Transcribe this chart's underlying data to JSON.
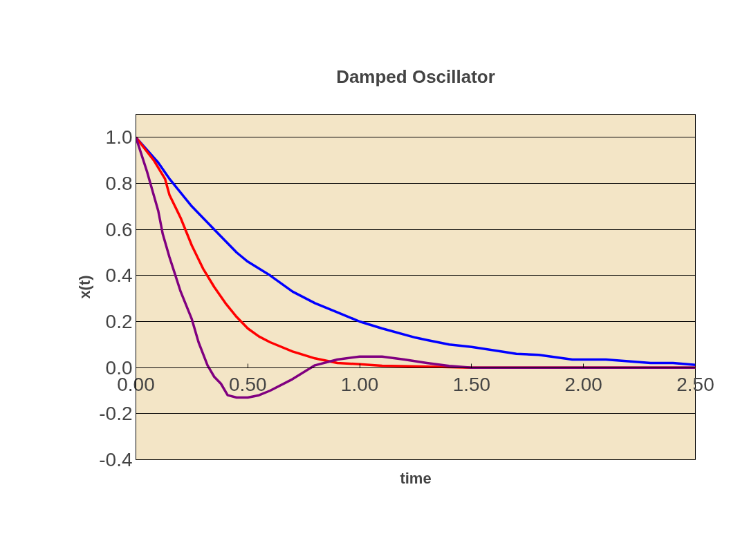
{
  "chart_data": {
    "type": "line",
    "title": "Damped Oscillator",
    "xlabel": "time",
    "ylabel": "x(t)",
    "xlim": [
      0,
      2.5
    ],
    "xticks": [
      {
        "value": 0,
        "label": "0.00"
      },
      {
        "value": 0.5,
        "label": "0.50"
      },
      {
        "value": 1,
        "label": "1.00"
      },
      {
        "value": 1.5,
        "label": "1.50"
      },
      {
        "value": 2,
        "label": "2.00"
      },
      {
        "value": 2.5,
        "label": "2.50"
      }
    ],
    "ylim": [
      -0.4,
      1.1
    ],
    "yticks": [
      {
        "value": -0.4,
        "label": "-0.4"
      },
      {
        "value": -0.2,
        "label": "-0.2"
      },
      {
        "value": 0,
        "label": "0.0"
      },
      {
        "value": 0.2,
        "label": "0.2"
      },
      {
        "value": 0.4,
        "label": "0.4"
      },
      {
        "value": 0.6,
        "label": "0.6"
      },
      {
        "value": 0.8,
        "label": "0.8"
      },
      {
        "value": 1,
        "label": "1.0"
      }
    ],
    "grid": "y",
    "marker": "none",
    "line_style": "solid",
    "series": [
      {
        "color": "#0000ff",
        "x": [
          0,
          0.1,
          0.15,
          0.25,
          0.35,
          0.45,
          0.5,
          0.6,
          0.7,
          0.8,
          0.9,
          1.0,
          1.1,
          1.25,
          1.3,
          1.4,
          1.5,
          1.7,
          1.8,
          1.95,
          2.1,
          2.3,
          2.4,
          2.5
        ],
        "values": [
          1,
          0.89,
          0.82,
          0.7,
          0.6,
          0.5,
          0.46,
          0.4,
          0.33,
          0.28,
          0.24,
          0.2,
          0.17,
          0.13,
          0.12,
          0.1,
          0.09,
          0.06,
          0.055,
          0.035,
          0.035,
          0.02,
          0.02,
          0.012
        ]
      },
      {
        "color": "#ff0000",
        "x": [
          0,
          0.08,
          0.13,
          0.15,
          0.2,
          0.25,
          0.3,
          0.35,
          0.4,
          0.45,
          0.5,
          0.55,
          0.6,
          0.7,
          0.8,
          0.9,
          1.0,
          1.1,
          1.3,
          1.5,
          2.5
        ],
        "values": [
          1,
          0.9,
          0.82,
          0.75,
          0.65,
          0.53,
          0.43,
          0.35,
          0.28,
          0.22,
          0.17,
          0.135,
          0.11,
          0.07,
          0.04,
          0.02,
          0.015,
          0.008,
          0.004,
          0,
          0
        ]
      },
      {
        "color": "#800080",
        "x": [
          0,
          0.05,
          0.1,
          0.12,
          0.15,
          0.2,
          0.25,
          0.28,
          0.32,
          0.35,
          0.38,
          0.41,
          0.45,
          0.5,
          0.55,
          0.6,
          0.7,
          0.8,
          0.9,
          1.0,
          1.1,
          1.2,
          1.3,
          1.4,
          1.5,
          2.5
        ],
        "values": [
          1,
          0.85,
          0.68,
          0.58,
          0.48,
          0.33,
          0.21,
          0.11,
          0.01,
          -0.04,
          -0.07,
          -0.12,
          -0.13,
          -0.13,
          -0.12,
          -0.1,
          -0.05,
          0.01,
          0.035,
          0.048,
          0.048,
          0.035,
          0.02,
          0.007,
          0,
          0
        ]
      }
    ]
  }
}
